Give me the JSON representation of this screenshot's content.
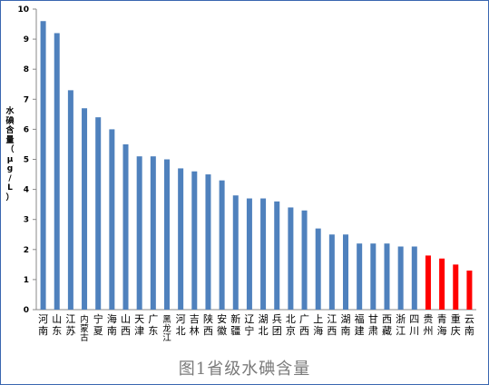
{
  "chart_data": {
    "type": "bar",
    "title": "",
    "ylabel": "水碘含量（μg/L）",
    "xlabel": "",
    "ylim": [
      0,
      10
    ],
    "yticks": [
      0,
      1,
      2,
      3,
      4,
      5,
      6,
      7,
      8,
      9,
      10
    ],
    "grid": false,
    "legend": "none",
    "categories": [
      "河南",
      "山东",
      "江苏",
      "内蒙古",
      "宁夏",
      "海南",
      "山西",
      "天津",
      "广东",
      "黑龙江",
      "河北",
      "吉林",
      "陕西",
      "安徽",
      "新疆",
      "辽宁",
      "湖北",
      "兵团",
      "北京",
      "广西",
      "上海",
      "江西",
      "湖南",
      "福建",
      "甘肃",
      "西藏",
      "浙江",
      "四川",
      "贵州",
      "青海",
      "重庆",
      "云南"
    ],
    "values": [
      9.6,
      9.2,
      7.3,
      6.7,
      6.4,
      6.0,
      5.5,
      5.1,
      5.1,
      5.0,
      4.7,
      4.6,
      4.5,
      4.3,
      3.8,
      3.7,
      3.7,
      3.6,
      3.4,
      3.3,
      2.7,
      2.5,
      2.5,
      2.2,
      2.2,
      2.2,
      2.1,
      2.1,
      1.8,
      1.7,
      1.5,
      1.3
    ],
    "colors": {
      "default": "#4f81bd",
      "highlight": "#ff0000",
      "highlighted_categories": [
        "贵州",
        "青海",
        "重庆",
        "云南"
      ]
    }
  },
  "caption": "图1省级水碘含量"
}
